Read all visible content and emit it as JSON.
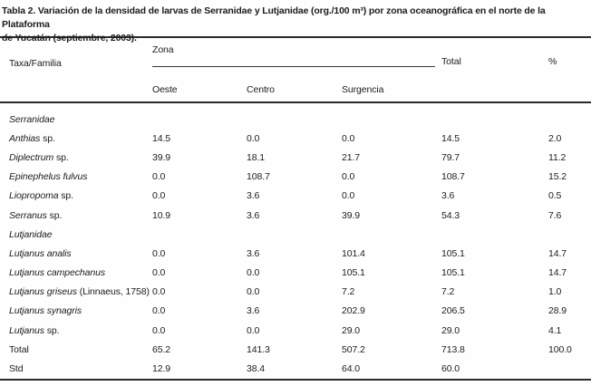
{
  "title": {
    "line1": "Tabla 2. Variación de la densidad de larvas de Serranidae y Lutjanidae (org./100 m³) por zona oceanográfica en el norte de la Plataforma",
    "line2": "de Yucatán (septiembre, 2003)."
  },
  "table": {
    "col_taxa": "Taxa/Familia",
    "col_group": "Zona",
    "zones": [
      "Oeste",
      "Centro",
      "Surgencia"
    ],
    "col_total": "Total",
    "col_pct": "%",
    "rows": [
      {
        "kind": "family",
        "italic": "Serranidae",
        "plain": "",
        "values": [
          "",
          "",
          "",
          "",
          ""
        ]
      },
      {
        "kind": "species",
        "italic": "Anthias",
        "plain": " sp.",
        "values": [
          "14.5",
          "0.0",
          "0.0",
          "14.5",
          "2.0"
        ]
      },
      {
        "kind": "species",
        "italic": "Diplectrum",
        "plain": " sp.",
        "values": [
          "39.9",
          "18.1",
          "21.7",
          "79.7",
          "11.2"
        ]
      },
      {
        "kind": "species",
        "italic": "Epinephelus fulvus",
        "plain": "",
        "values": [
          "0.0",
          "108.7",
          "0.0",
          "108.7",
          "15.2"
        ]
      },
      {
        "kind": "species",
        "italic": "Liopropoma",
        "plain": " sp.",
        "values": [
          "0.0",
          "3.6",
          "0.0",
          "3.6",
          "0.5"
        ]
      },
      {
        "kind": "species",
        "italic": "Serranus",
        "plain": " sp.",
        "values": [
          "10.9",
          "3.6",
          "39.9",
          "54.3",
          "7.6"
        ]
      },
      {
        "kind": "family",
        "italic": "Lutjanidae",
        "plain": "",
        "values": [
          "",
          "",
          "",
          "",
          ""
        ]
      },
      {
        "kind": "species",
        "italic": "Lutjanus analis",
        "plain": "",
        "values": [
          "0.0",
          "3.6",
          "101.4",
          "105.1",
          "14.7"
        ]
      },
      {
        "kind": "species",
        "italic": "Lutjanus campechanus",
        "plain": "",
        "values": [
          "0.0",
          "0.0",
          "105.1",
          "105.1",
          "14.7"
        ]
      },
      {
        "kind": "species",
        "italic": "Lutjanus griseus",
        "plain": " (Linnaeus, 1758)",
        "values": [
          "0.0",
          "0.0",
          "7.2",
          "7.2",
          "1.0"
        ]
      },
      {
        "kind": "species",
        "italic": "Lutjanus synagris",
        "plain": "",
        "values": [
          "0.0",
          "3.6",
          "202.9",
          "206.5",
          "28.9"
        ]
      },
      {
        "kind": "species",
        "italic": "Lutjanus",
        "plain": " sp.",
        "values": [
          "0.0",
          "0.0",
          "29.0",
          "29.0",
          "4.1"
        ]
      },
      {
        "kind": "summary",
        "italic": "",
        "plain": "Total",
        "values": [
          "65.2",
          "141.3",
          "507.2",
          "713.8",
          "100.0"
        ]
      },
      {
        "kind": "summary",
        "italic": "",
        "plain": "Std",
        "values": [
          "12.9",
          "38.4",
          "64.0",
          "60.0",
          ""
        ]
      }
    ]
  },
  "colors": {
    "text": "#1c1c1c",
    "rule": "#2a2a2a",
    "background": "#fefefe"
  }
}
